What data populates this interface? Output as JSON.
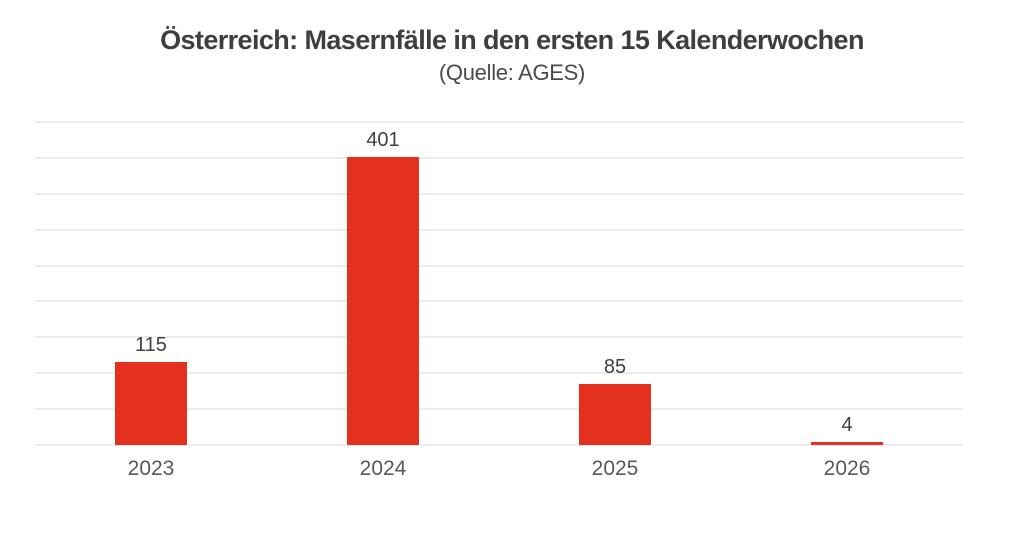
{
  "chart_data": {
    "type": "bar",
    "title": "Österreich: Masernfälle in den ersten 15 Kalenderwochen",
    "subtitle": "(Quelle: AGES)",
    "categories": [
      "2023",
      "2024",
      "2025",
      "2026"
    ],
    "values": [
      115,
      401,
      85,
      4
    ],
    "xlabel": "",
    "ylabel": "",
    "ylim": [
      0,
      450
    ],
    "grid_step": 50,
    "grid": true,
    "y_tick_labels_visible": false,
    "legend": false,
    "colors": {
      "bar": "#e4311e",
      "gridline": "#d9d9d9",
      "value_label": "#404040",
      "axis_label": "#595959",
      "title": "#3e3e3e",
      "subtitle": "#4a4a4a",
      "background": "#ffffff"
    }
  }
}
